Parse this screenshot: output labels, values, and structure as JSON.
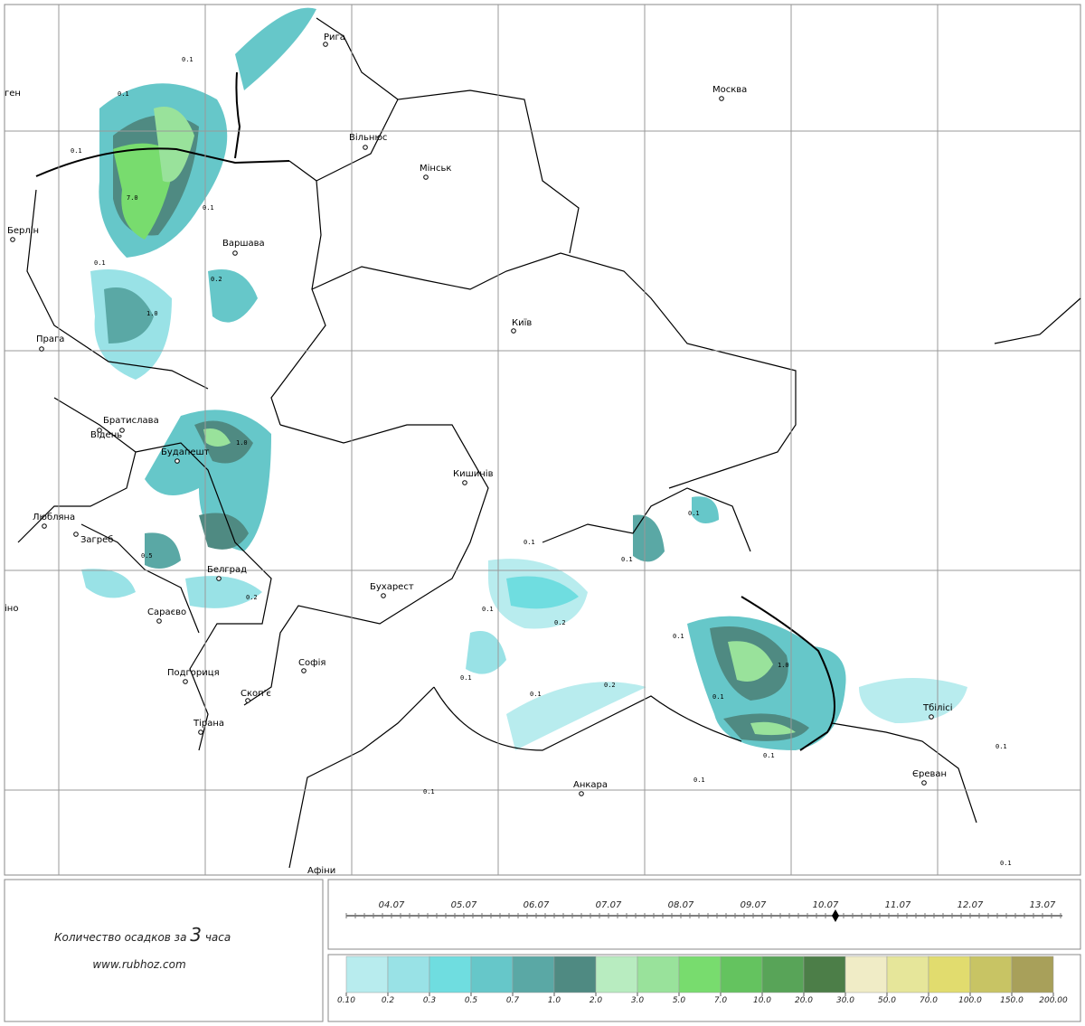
{
  "map": {
    "cities": [
      "Рига",
      "Москва",
      "Вільнюс",
      "Мінськ",
      "Берлін",
      "Варшава",
      "Київ",
      "Прага",
      "Братислава",
      "Відень",
      "Будапешт",
      "Кишинів",
      "Любляна",
      "Загреб",
      "Белград",
      "Бухарест",
      "Сараєво",
      "Софія",
      "Подгориця",
      "Скоп'є",
      "Тірана",
      "Тбілісі",
      "Єреван",
      "Анкара",
      "Афіни",
      "ген",
      "іно"
    ],
    "contour_labels": [
      "0.1",
      "0.1",
      "0.1",
      "7.0",
      "0.1",
      "0.1",
      "0.2",
      "1.0",
      "1.0",
      "0.5",
      "0.2",
      "0.1",
      "0.1",
      "0.1",
      "0.1",
      "0.2",
      "0.1",
      "0.1",
      "0.2",
      "0.1",
      "1.0",
      "0.1",
      "0.1",
      "0.1",
      "0.1",
      "0.1",
      "0.1"
    ]
  },
  "caption": {
    "prefix": "Количество осадков за",
    "hours": "3",
    "suffix": "часа",
    "site": "www.rubhoz.com"
  },
  "timeline": {
    "dates": [
      "04.07",
      "05.07",
      "06.07",
      "07.07",
      "08.07",
      "09.07",
      "10.07",
      "11.07",
      "12.07",
      "13.07"
    ]
  },
  "legend": {
    "colors": [
      "#b8ecee",
      "#99e2e6",
      "#6fdde0",
      "#66c7c9",
      "#5aa8a5",
      "#4f8a82",
      "#b8ecc0",
      "#99e29b",
      "#78dc6e",
      "#64c35f",
      "#58a458",
      "#4c7e48",
      "#f0ecc6",
      "#e6e69a",
      "#e1dc6e",
      "#c8c464",
      "#a8a05a"
    ],
    "labels": [
      "0.10",
      "0.2",
      "0.3",
      "0.5",
      "0.7",
      "1.0",
      "2.0",
      "3.0",
      "5.0",
      "7.0",
      "10.0",
      "20.0",
      "30.0",
      "50.0",
      "70.0",
      "100.0",
      "150.0",
      "200.00"
    ]
  }
}
